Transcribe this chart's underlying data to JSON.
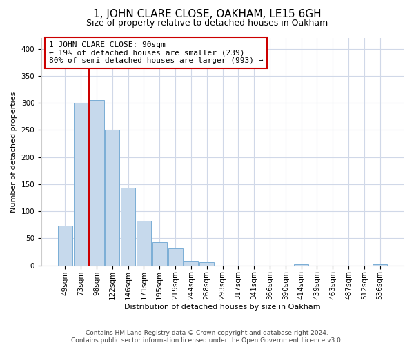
{
  "title": "1, JOHN CLARE CLOSE, OAKHAM, LE15 6GH",
  "subtitle": "Size of property relative to detached houses in Oakham",
  "xlabel": "Distribution of detached houses by size in Oakham",
  "ylabel": "Number of detached properties",
  "footer_line1": "Contains HM Land Registry data © Crown copyright and database right 2024.",
  "footer_line2": "Contains public sector information licensed under the Open Government Licence v3.0.",
  "bar_labels": [
    "49sqm",
    "73sqm",
    "98sqm",
    "122sqm",
    "146sqm",
    "171sqm",
    "195sqm",
    "219sqm",
    "244sqm",
    "268sqm",
    "293sqm",
    "317sqm",
    "341sqm",
    "366sqm",
    "390sqm",
    "414sqm",
    "439sqm",
    "463sqm",
    "487sqm",
    "512sqm",
    "536sqm"
  ],
  "bar_values": [
    73,
    300,
    305,
    250,
    144,
    82,
    43,
    32,
    8,
    6,
    0,
    0,
    0,
    0,
    0,
    2,
    0,
    0,
    0,
    0,
    2
  ],
  "bar_color": "#c6d9ec",
  "bar_edge_color": "#7aaed6",
  "annotation_box_text": "1 JOHN CLARE CLOSE: 90sqm\n← 19% of detached houses are smaller (239)\n80% of semi-detached houses are larger (993) →",
  "vline_color": "#cc0000",
  "ylim": [
    0,
    420
  ],
  "yticks": [
    0,
    50,
    100,
    150,
    200,
    250,
    300,
    350,
    400
  ],
  "grid_color": "#d0d8e8",
  "title_fontsize": 11,
  "subtitle_fontsize": 9,
  "ylabel_fontsize": 8,
  "xlabel_fontsize": 8,
  "tick_fontsize": 7.5,
  "footer_fontsize": 6.5,
  "annot_fontsize": 8
}
